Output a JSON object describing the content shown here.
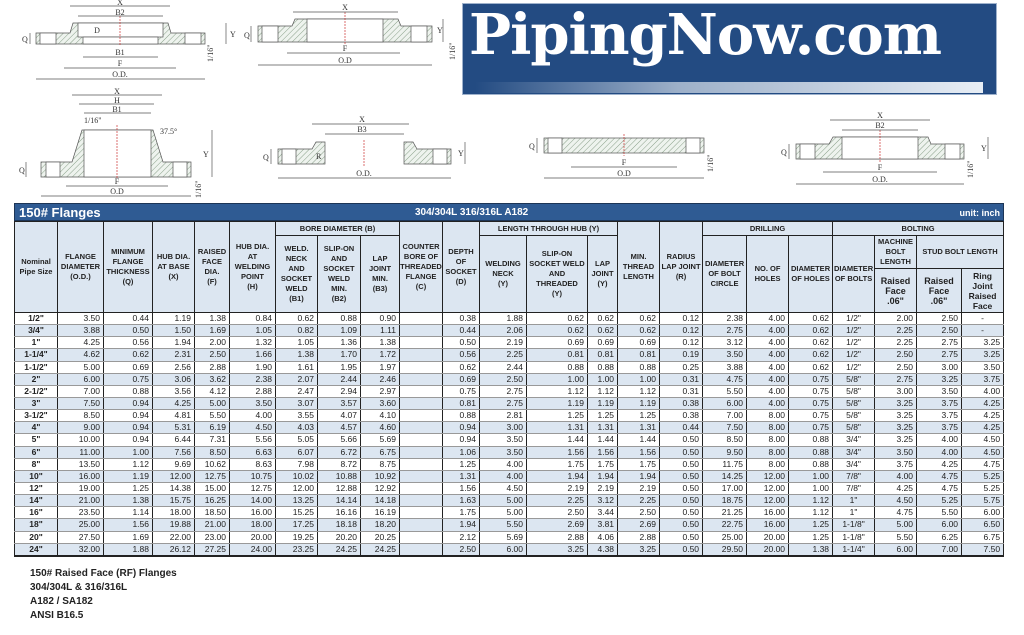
{
  "logo": {
    "text": "PipingNow.com",
    "color": "#234b82"
  },
  "drawings": {
    "d1": {
      "x": "X",
      "b2": "B2",
      "d": "D",
      "b1": "B1",
      "f": "F",
      "od": "O.D.",
      "q": "Q",
      "y": "Y",
      "r": "1/16\""
    },
    "d2": {
      "x": "X",
      "f": "F",
      "od": "O.D",
      "q": "Q",
      "y": "Y",
      "r": "1/16\""
    },
    "d3": {
      "x": "X",
      "h": "H",
      "b1": "B1",
      "r1": "1/16\"",
      "ang": "37.5°",
      "q": "Q",
      "y": "Y",
      "f": "F",
      "od": "O.D",
      "r2": "1/16\""
    },
    "d4": {
      "x": "X",
      "b3": "B3",
      "q": "Q",
      "r": "R",
      "od": "O.D.",
      "y": "Y"
    },
    "d5": {
      "q": "Q",
      "f": "F",
      "od": "O.D",
      "r": "1/16\""
    },
    "d6": {
      "x": "X",
      "b2": "B2",
      "q": "Q",
      "y": "Y",
      "f": "F",
      "od": "O.D.",
      "r": "1/16\""
    }
  },
  "title": {
    "main": "150# Flanges",
    "material": "304/304L  316/316L  A182",
    "unit": "unit: inch",
    "bar_color": "#2f5b93",
    "header_fill": "#dce6f1"
  },
  "headers": {
    "size": "Nominal\nPipe Size",
    "od": "FLANGE\nDIAMETER\n(O.D.)",
    "q": "MINIMUM\nFLANGE\nTHICKNESS\n(Q)",
    "x": "HUB DIA.\nAT BASE\n(X)",
    "f": "RAISED\nFACE\nDIA.\n(F)",
    "h": "HUB DIA.\nAT\nWELDING\nPOINT\n(H)",
    "bore": "BORE DIAMETER (B)",
    "b1": "WELD.\nNECK\nAND\nSOCKET\nWELD\n(B1)",
    "b2": "SLIP-ON\nAND\nSOCKET\nWELD\nMIN.\n(B2)",
    "b3": "LAP\nJOINT\nMIN.\n(B3)",
    "c": "COUNTER\nBORE OF\nTHREADED\nFLANGE\n(C)",
    "d": "DEPTH\nOF\nSOCKET\n(D)",
    "length": "LENGTH THROUGH HUB (Y)",
    "ywn": "WELDING\nNECK\n(Y)",
    "yso": "SLIP-ON\nSOCKET WELD\nAND\nTHREADED\n(Y)",
    "ylap": "LAP\nJOINT\n(Y)",
    "thread": "MIN.\nTHREAD\nLENGTH",
    "r": "RADIUS\nLAP JOINT\n(R)",
    "drilling": "DRILLING",
    "bc": "DIAMETER\nOF BOLT\nCIRCLE",
    "holes": "NO. OF\nHOLES",
    "dholes": "DIAMETER\nOF HOLES",
    "bolting": "BOLTING",
    "dbolts": "DIAMETER\nOF BOLTS",
    "mb": "MACHINE\nBOLT\nLENGTH",
    "stud": "STUD BOLT LENGTH",
    "mbrf": "Raised\nFace\n.06\"",
    "studrf": "Raised\nFace\n.06\"",
    "ring": "Ring Joint\nRaised\nFace"
  },
  "rows": [
    [
      "1/2\"",
      "3.50",
      "0.44",
      "1.19",
      "1.38",
      "0.84",
      "0.62",
      "0.88",
      "0.90",
      "",
      "0.38",
      "1.88",
      "0.62",
      "0.62",
      "0.62",
      "0.12",
      "2.38",
      "4.00",
      "0.62",
      "1/2\"",
      "2.00",
      "2.50",
      "-"
    ],
    [
      "3/4\"",
      "3.88",
      "0.50",
      "1.50",
      "1.69",
      "1.05",
      "0.82",
      "1.09",
      "1.11",
      "",
      "0.44",
      "2.06",
      "0.62",
      "0.62",
      "0.62",
      "0.12",
      "2.75",
      "4.00",
      "0.62",
      "1/2\"",
      "2.25",
      "2.50",
      "-"
    ],
    [
      "1\"",
      "4.25",
      "0.56",
      "1.94",
      "2.00",
      "1.32",
      "1.05",
      "1.36",
      "1.38",
      "",
      "0.50",
      "2.19",
      "0.69",
      "0.69",
      "0.69",
      "0.12",
      "3.12",
      "4.00",
      "0.62",
      "1/2\"",
      "2.25",
      "2.75",
      "3.25"
    ],
    [
      "1-1/4\"",
      "4.62",
      "0.62",
      "2.31",
      "2.50",
      "1.66",
      "1.38",
      "1.70",
      "1.72",
      "",
      "0.56",
      "2.25",
      "0.81",
      "0.81",
      "0.81",
      "0.19",
      "3.50",
      "4.00",
      "0.62",
      "1/2\"",
      "2.50",
      "2.75",
      "3.25"
    ],
    [
      "1-1/2\"",
      "5.00",
      "0.69",
      "2.56",
      "2.88",
      "1.90",
      "1.61",
      "1.95",
      "1.97",
      "",
      "0.62",
      "2.44",
      "0.88",
      "0.88",
      "0.88",
      "0.25",
      "3.88",
      "4.00",
      "0.62",
      "1/2\"",
      "2.50",
      "3.00",
      "3.50"
    ],
    [
      "2\"",
      "6.00",
      "0.75",
      "3.06",
      "3.62",
      "2.38",
      "2.07",
      "2.44",
      "2.46",
      "",
      "0.69",
      "2.50",
      "1.00",
      "1.00",
      "1.00",
      "0.31",
      "4.75",
      "4.00",
      "0.75",
      "5/8\"",
      "2.75",
      "3.25",
      "3.75"
    ],
    [
      "2-1/2\"",
      "7.00",
      "0.88",
      "3.56",
      "4.12",
      "2.88",
      "2.47",
      "2.94",
      "2.97",
      "",
      "0.75",
      "2.75",
      "1.12",
      "1.12",
      "1.12",
      "0.31",
      "5.50",
      "4.00",
      "0.75",
      "5/8\"",
      "3.00",
      "3.50",
      "4.00"
    ],
    [
      "3\"",
      "7.50",
      "0.94",
      "4.25",
      "5.00",
      "3.50",
      "3.07",
      "3.57",
      "3.60",
      "",
      "0.81",
      "2.75",
      "1.19",
      "1.19",
      "1.19",
      "0.38",
      "6.00",
      "4.00",
      "0.75",
      "5/8\"",
      "3.25",
      "3.75",
      "4.25"
    ],
    [
      "3-1/2\"",
      "8.50",
      "0.94",
      "4.81",
      "5.50",
      "4.00",
      "3.55",
      "4.07",
      "4.10",
      "",
      "0.88",
      "2.81",
      "1.25",
      "1.25",
      "1.25",
      "0.38",
      "7.00",
      "8.00",
      "0.75",
      "5/8\"",
      "3.25",
      "3.75",
      "4.25"
    ],
    [
      "4\"",
      "9.00",
      "0.94",
      "5.31",
      "6.19",
      "4.50",
      "4.03",
      "4.57",
      "4.60",
      "",
      "0.94",
      "3.00",
      "1.31",
      "1.31",
      "1.31",
      "0.44",
      "7.50",
      "8.00",
      "0.75",
      "5/8\"",
      "3.25",
      "3.75",
      "4.25"
    ],
    [
      "5\"",
      "10.00",
      "0.94",
      "6.44",
      "7.31",
      "5.56",
      "5.05",
      "5.66",
      "5.69",
      "",
      "0.94",
      "3.50",
      "1.44",
      "1.44",
      "1.44",
      "0.50",
      "8.50",
      "8.00",
      "0.88",
      "3/4\"",
      "3.25",
      "4.00",
      "4.50"
    ],
    [
      "6\"",
      "11.00",
      "1.00",
      "7.56",
      "8.50",
      "6.63",
      "6.07",
      "6.72",
      "6.75",
      "",
      "1.06",
      "3.50",
      "1.56",
      "1.56",
      "1.56",
      "0.50",
      "9.50",
      "8.00",
      "0.88",
      "3/4\"",
      "3.50",
      "4.00",
      "4.50"
    ],
    [
      "8\"",
      "13.50",
      "1.12",
      "9.69",
      "10.62",
      "8.63",
      "7.98",
      "8.72",
      "8.75",
      "",
      "1.25",
      "4.00",
      "1.75",
      "1.75",
      "1.75",
      "0.50",
      "11.75",
      "8.00",
      "0.88",
      "3/4\"",
      "3.75",
      "4.25",
      "4.75"
    ],
    [
      "10\"",
      "16.00",
      "1.19",
      "12.00",
      "12.75",
      "10.75",
      "10.02",
      "10.88",
      "10.92",
      "",
      "1.31",
      "4.00",
      "1.94",
      "1.94",
      "1.94",
      "0.50",
      "14.25",
      "12.00",
      "1.00",
      "7/8\"",
      "4.00",
      "4.75",
      "5.25"
    ],
    [
      "12\"",
      "19.00",
      "1.25",
      "14.38",
      "15.00",
      "12.75",
      "12.00",
      "12.88",
      "12.92",
      "",
      "1.56",
      "4.50",
      "2.19",
      "2.19",
      "2.19",
      "0.50",
      "17.00",
      "12.00",
      "1.00",
      "7/8\"",
      "4.25",
      "4.75",
      "5.25"
    ],
    [
      "14\"",
      "21.00",
      "1.38",
      "15.75",
      "16.25",
      "14.00",
      "13.25",
      "14.14",
      "14.18",
      "",
      "1.63",
      "5.00",
      "2.25",
      "3.12",
      "2.25",
      "0.50",
      "18.75",
      "12.00",
      "1.12",
      "1\"",
      "4.50",
      "5.25",
      "5.75"
    ],
    [
      "16\"",
      "23.50",
      "1.14",
      "18.00",
      "18.50",
      "16.00",
      "15.25",
      "16.16",
      "16.19",
      "",
      "1.75",
      "5.00",
      "2.50",
      "3.44",
      "2.50",
      "0.50",
      "21.25",
      "16.00",
      "1.12",
      "1\"",
      "4.75",
      "5.50",
      "6.00"
    ],
    [
      "18\"",
      "25.00",
      "1.56",
      "19.88",
      "21.00",
      "18.00",
      "17.25",
      "18.18",
      "18.20",
      "",
      "1.94",
      "5.50",
      "2.69",
      "3.81",
      "2.69",
      "0.50",
      "22.75",
      "16.00",
      "1.25",
      "1-1/8\"",
      "5.00",
      "6.00",
      "6.50"
    ],
    [
      "20\"",
      "27.50",
      "1.69",
      "22.00",
      "23.00",
      "20.00",
      "19.25",
      "20.20",
      "20.25",
      "",
      "2.12",
      "5.69",
      "2.88",
      "4.06",
      "2.88",
      "0.50",
      "25.00",
      "20.00",
      "1.25",
      "1-1/8\"",
      "5.50",
      "6.25",
      "6.75"
    ],
    [
      "24\"",
      "32.00",
      "1.88",
      "26.12",
      "27.25",
      "24.00",
      "23.25",
      "24.25",
      "24.25",
      "",
      "2.50",
      "6.00",
      "3.25",
      "4.38",
      "3.25",
      "0.50",
      "29.50",
      "20.00",
      "1.38",
      "1-1/4\"",
      "6.00",
      "7.00",
      "7.50"
    ]
  ],
  "footer": [
    "150# Raised Face (RF) Flanges",
    "304/304L & 316/316L",
    "A182 / SA182",
    "ANSI B16.5"
  ]
}
